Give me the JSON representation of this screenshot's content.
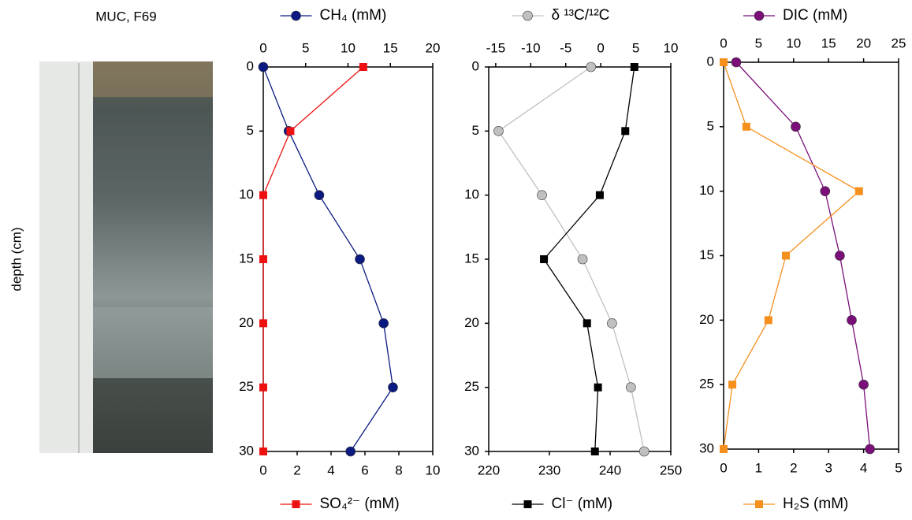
{
  "photo_caption": "MUC, F69",
  "chart_data": [
    {
      "type": "line",
      "ylabel": "depth (cm)",
      "y": [
        0,
        5,
        10,
        15,
        20,
        25,
        30
      ],
      "ylim": [
        0,
        30
      ],
      "y_inverted": true,
      "yticks": [
        0,
        5,
        10,
        15,
        20,
        25,
        30
      ],
      "x2lim": [
        0,
        20
      ],
      "x2ticks": [
        0,
        5,
        10,
        15,
        20
      ],
      "xlim": [
        0,
        10
      ],
      "xticks": [
        0,
        2,
        4,
        6,
        8,
        10
      ],
      "series": [
        {
          "name": "CH₄ (mM)",
          "color": "#0b1a80",
          "marker": "circle",
          "axis": "x2",
          "values": [
            0,
            3,
            6.6,
            11.4,
            14.2,
            15.3,
            10.3
          ]
        },
        {
          "name": "SO₄²⁻ (mM)",
          "color": "#ee1111",
          "marker": "square",
          "axis": "x",
          "values": [
            5.9,
            1.6,
            0,
            0,
            0,
            0,
            0
          ]
        }
      ]
    },
    {
      "type": "line",
      "y": [
        0,
        5,
        10,
        15,
        20,
        25,
        30
      ],
      "ylim": [
        0,
        30
      ],
      "y_inverted": true,
      "yticks": [
        0,
        5,
        10,
        15,
        20,
        25,
        30
      ],
      "x2lim": [
        -16,
        10
      ],
      "x2ticks": [
        -15,
        -10,
        -5,
        0,
        5,
        10
      ],
      "xlim": [
        220,
        250
      ],
      "xticks": [
        220,
        230,
        240,
        250
      ],
      "series": [
        {
          "name": "δ ¹³C/¹²C",
          "color": "#c0c0c0",
          "marker": "circle",
          "axis": "x2",
          "values": [
            -1.4,
            -14.6,
            -8.4,
            -2.6,
            1.6,
            4.3,
            6.2
          ]
        },
        {
          "name": "Cl⁻ (mM)",
          "color": "#000000",
          "marker": "square",
          "axis": "x",
          "values": [
            244,
            242.5,
            238.3,
            229.1,
            236.2,
            238,
            237.5
          ]
        }
      ]
    },
    {
      "type": "line",
      "y": [
        0,
        5,
        10,
        15,
        20,
        25,
        30
      ],
      "ylim": [
        0,
        30
      ],
      "y_inverted": true,
      "yticks": [
        0,
        5,
        10,
        15,
        20,
        25,
        30
      ],
      "x2lim": [
        0,
        25
      ],
      "x2ticks": [
        0,
        5,
        10,
        15,
        20,
        25
      ],
      "xlim": [
        0,
        5
      ],
      "xticks": [
        0,
        1,
        2,
        3,
        4,
        5
      ],
      "series": [
        {
          "name": "DIC (mM)",
          "color": "#7a0f7a",
          "marker": "circle",
          "axis": "x2",
          "values": [
            1.8,
            10.3,
            14.5,
            16.6,
            18.3,
            20,
            20.9
          ]
        },
        {
          "name": "H₂S (mM)",
          "color": "#f5901e",
          "marker": "square",
          "axis": "x",
          "values": [
            0,
            0.65,
            3.87,
            1.78,
            1.28,
            0.25,
            0
          ]
        }
      ]
    }
  ]
}
